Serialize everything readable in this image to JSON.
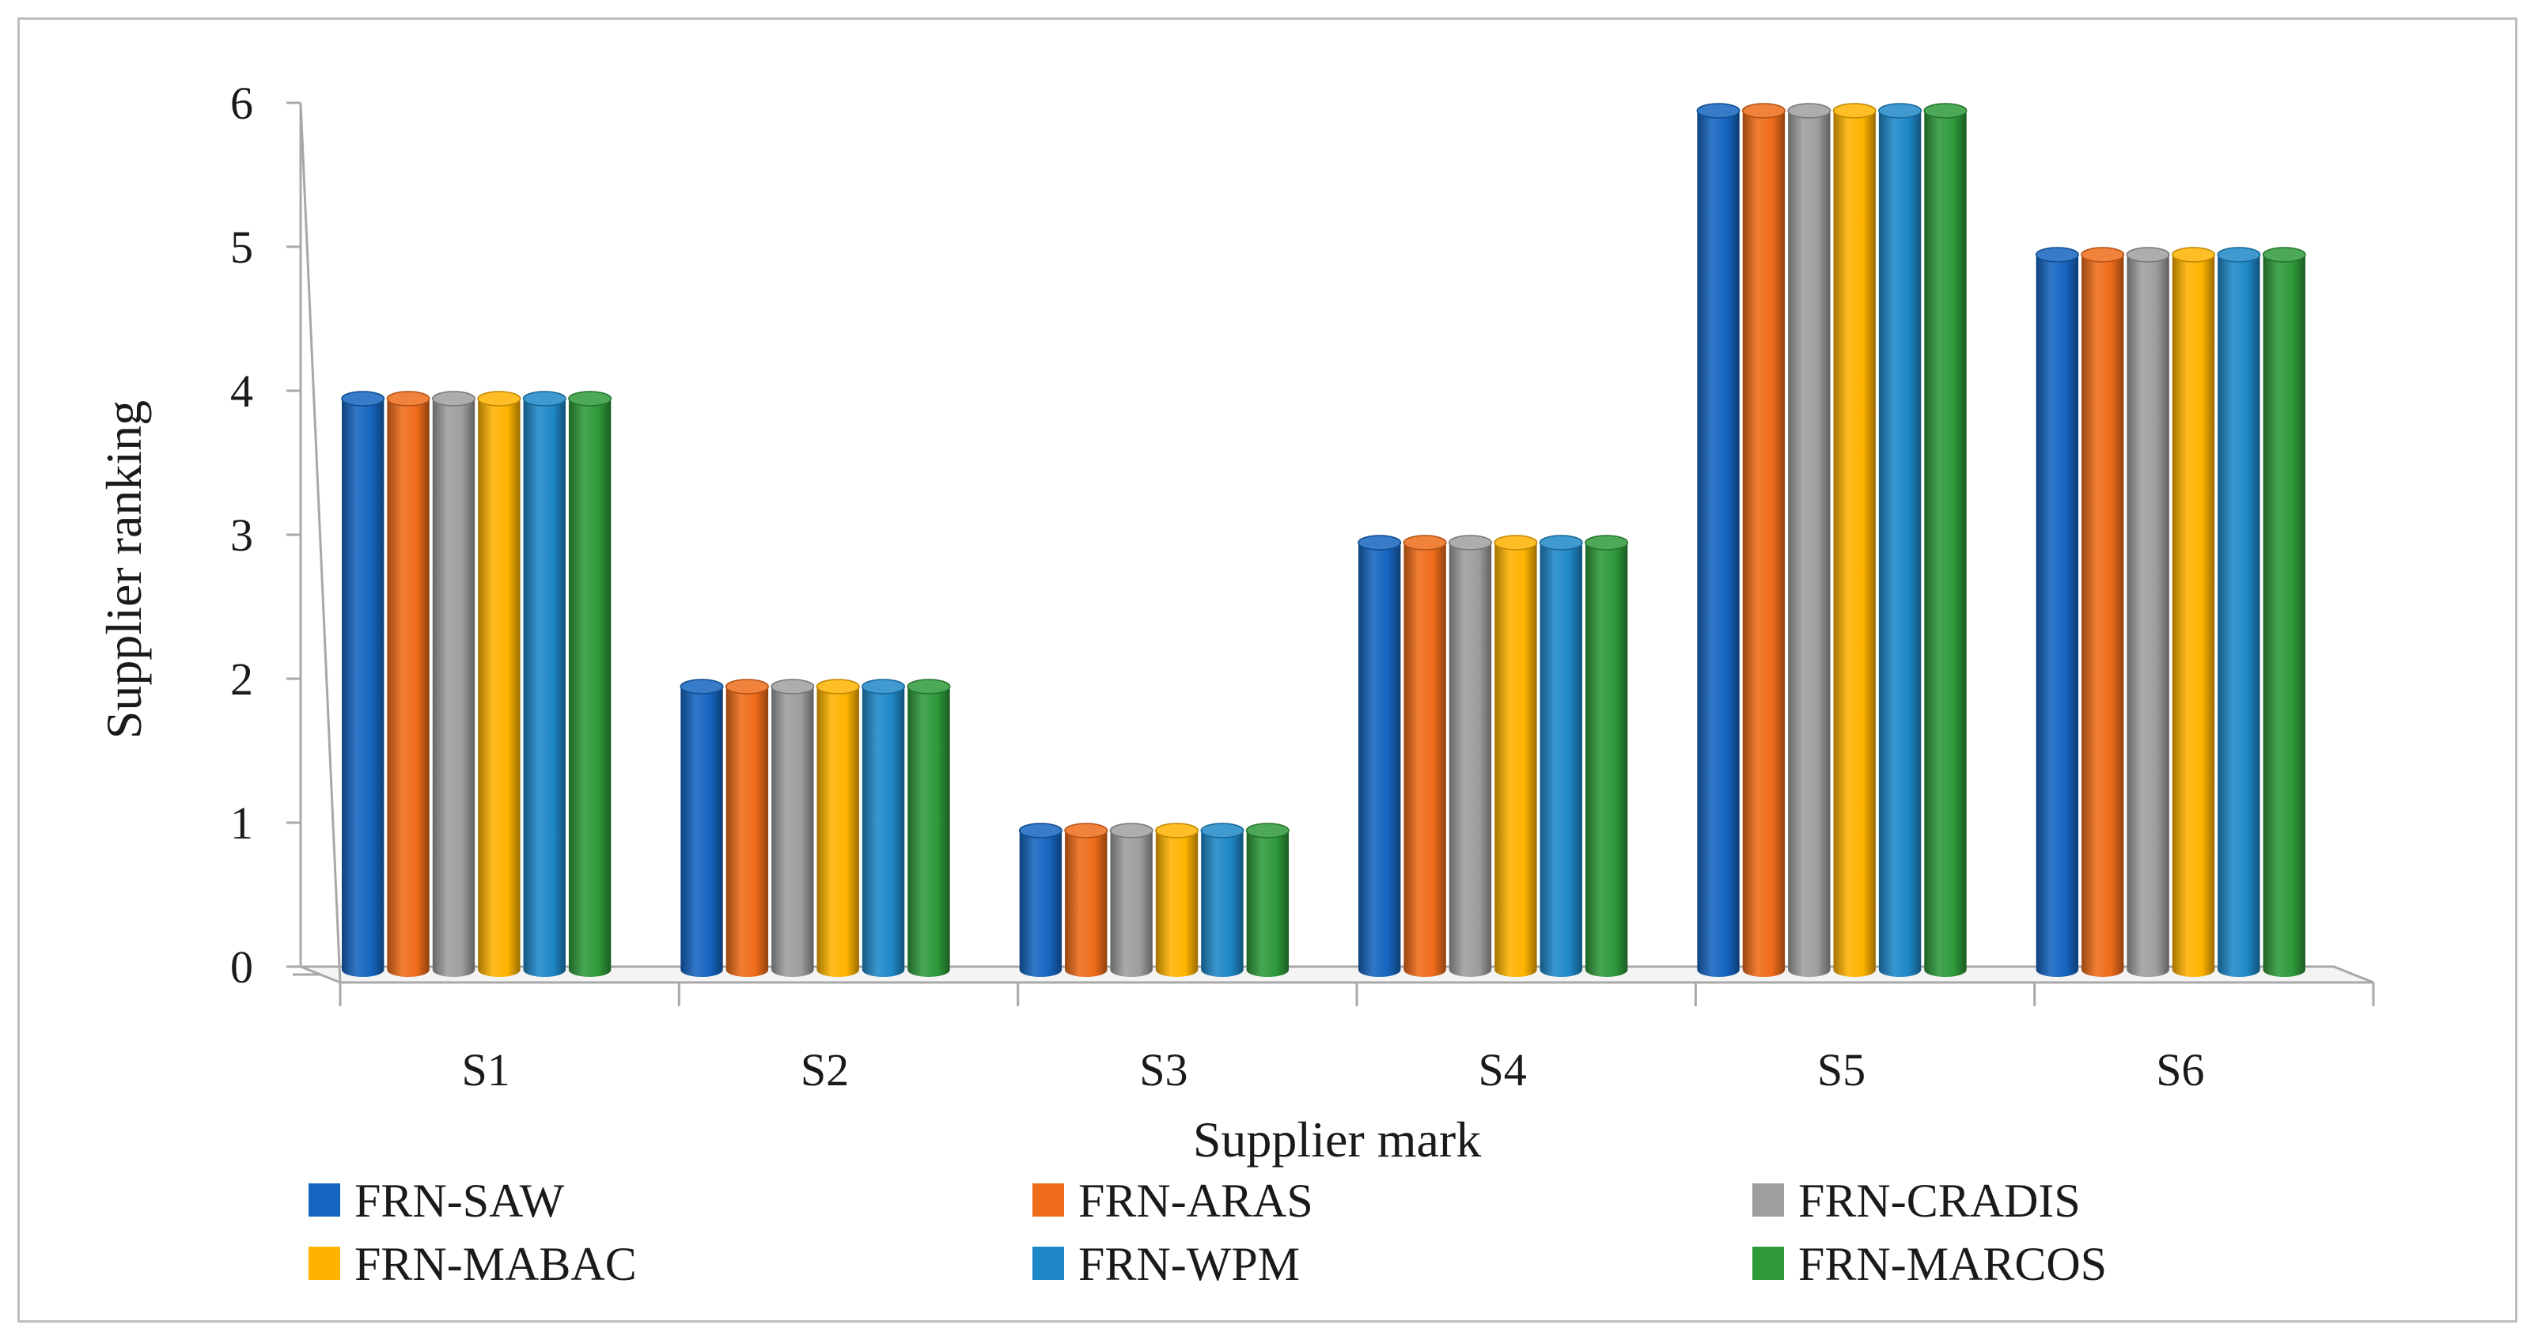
{
  "chart_data": {
    "type": "bar",
    "title": "",
    "xlabel": "Supplier mark",
    "ylabel": "Supplier ranking",
    "categories": [
      "S1",
      "S2",
      "S3",
      "S4",
      "S5",
      "S6"
    ],
    "ylim": [
      0,
      6
    ],
    "yticks": [
      "0",
      "1",
      "2",
      "3",
      "4",
      "5",
      "6"
    ],
    "series": [
      {
        "name": "FRN-SAW",
        "color": "#1565c0",
        "values": [
          4,
          2,
          1,
          3,
          6,
          5
        ]
      },
      {
        "name": "FRN-ARAS",
        "color": "#ef6c1a",
        "values": [
          4,
          2,
          1,
          3,
          6,
          5
        ]
      },
      {
        "name": "FRN-CRADIS",
        "color": "#9e9e9e",
        "values": [
          4,
          2,
          1,
          3,
          6,
          5
        ]
      },
      {
        "name": "FRN-MABAC",
        "color": "#ffb300",
        "values": [
          4,
          2,
          1,
          3,
          6,
          5
        ]
      },
      {
        "name": "FRN-WPM",
        "color": "#1e88c8",
        "values": [
          4,
          2,
          1,
          3,
          6,
          5
        ]
      },
      {
        "name": "FRN-MARCOS",
        "color": "#2e9a3a",
        "values": [
          4,
          2,
          1,
          3,
          6,
          5
        ]
      }
    ],
    "legend_position": "bottom"
  }
}
